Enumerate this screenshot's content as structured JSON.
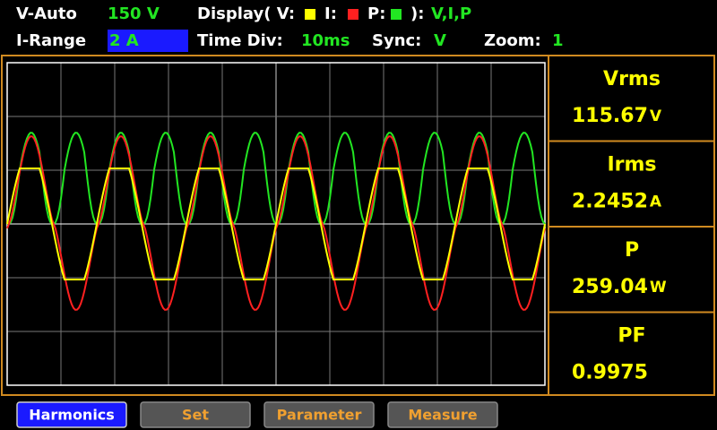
{
  "header": {
    "row1": {
      "mode": "V-Auto",
      "range": "150 V",
      "display_label": "Display( V:",
      "i_label": "I:",
      "p_label": "P:",
      "display_close": "):",
      "display_value": "V,I,P"
    },
    "row2": {
      "i_range_label": "I-Range",
      "i_range_value": "2 A",
      "time_div_label": "Time Div:",
      "time_div_value": "10ms",
      "sync_label": "Sync:",
      "sync_value": "V",
      "zoom_label": "Zoom:",
      "zoom_value": "1"
    }
  },
  "readings": [
    {
      "label": "Vrms",
      "value": "115.67",
      "unit": "V"
    },
    {
      "label": "Irms",
      "value": "2.2452",
      "unit": "A"
    },
    {
      "label": "P",
      "value": "259.04",
      "unit": "W"
    },
    {
      "label": "PF",
      "value": "0.9975"
    }
  ],
  "buttons": [
    "Harmonics",
    "Set",
    "Parameter",
    "Measure"
  ]
}
